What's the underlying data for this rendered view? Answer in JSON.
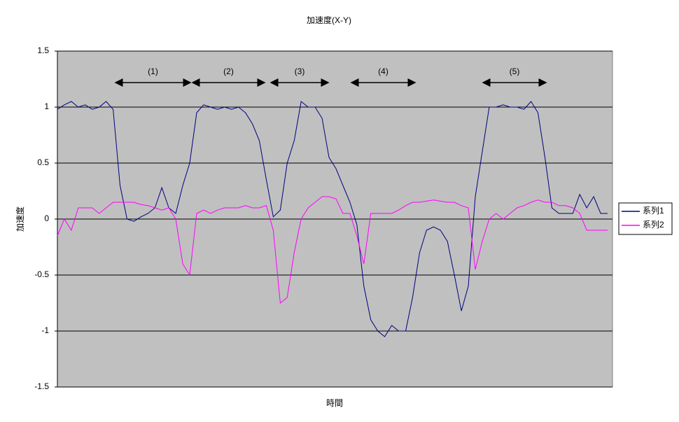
{
  "chart_data": {
    "type": "line",
    "title": "加速度(X-Y)",
    "x_label": "時間",
    "y_label": "加速度",
    "ylim": [
      -1.5,
      1.5
    ],
    "yticks": [
      1.5,
      1,
      0.5,
      0,
      -0.5,
      -1,
      -1.5
    ],
    "grid": true,
    "legend": "right",
    "annotations": [
      "(1)",
      "(2)",
      "(3)",
      "(4)",
      "(5)"
    ],
    "series": [
      {
        "name": "系列1",
        "color": "#000080",
        "values": [
          0.98,
          1.02,
          1.05,
          1.0,
          1.02,
          0.98,
          1.0,
          1.05,
          0.98,
          0.3,
          0.0,
          -0.02,
          0.02,
          0.05,
          0.1,
          0.28,
          0.1,
          0.05,
          0.3,
          0.5,
          0.95,
          1.02,
          1.0,
          0.98,
          1.0,
          0.98,
          1.0,
          0.95,
          0.85,
          0.7,
          0.35,
          0.02,
          0.08,
          0.5,
          0.7,
          1.05,
          1.0,
          1.0,
          0.9,
          0.55,
          0.45,
          0.3,
          0.15,
          -0.05,
          -0.6,
          -0.9,
          -1.0,
          -1.05,
          -0.95,
          -1.0,
          -1.0,
          -0.7,
          -0.3,
          -0.1,
          -0.07,
          -0.1,
          -0.2,
          -0.5,
          -0.82,
          -0.6,
          0.2,
          0.6,
          1.0,
          1.0,
          1.02,
          1.0,
          1.0,
          0.98,
          1.05,
          0.95,
          0.55,
          0.1,
          0.05,
          0.05,
          0.05,
          0.22,
          0.1,
          0.2,
          0.05,
          0.05
        ]
      },
      {
        "name": "系列2",
        "color": "#ff00ff",
        "values": [
          -0.15,
          0.0,
          -0.1,
          0.1,
          0.1,
          0.1,
          0.05,
          0.1,
          0.15,
          0.15,
          0.15,
          0.15,
          0.13,
          0.12,
          0.1,
          0.08,
          0.1,
          0.0,
          -0.4,
          -0.5,
          0.05,
          0.08,
          0.05,
          0.08,
          0.1,
          0.1,
          0.1,
          0.12,
          0.1,
          0.1,
          0.12,
          -0.1,
          -0.75,
          -0.7,
          -0.3,
          0.0,
          0.1,
          0.15,
          0.2,
          0.2,
          0.18,
          0.05,
          0.05,
          -0.15,
          -0.4,
          0.05,
          0.05,
          0.05,
          0.05,
          0.08,
          0.12,
          0.15,
          0.15,
          0.16,
          0.17,
          0.16,
          0.15,
          0.15,
          0.12,
          0.1,
          -0.45,
          -0.2,
          0.0,
          0.05,
          0.0,
          0.05,
          0.1,
          0.12,
          0.15,
          0.17,
          0.15,
          0.15,
          0.12,
          0.12,
          0.1,
          0.05,
          -0.1,
          -0.1,
          -0.1,
          -0.1
        ]
      }
    ]
  }
}
